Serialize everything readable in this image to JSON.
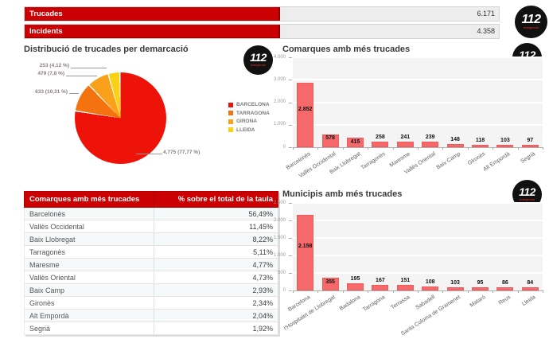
{
  "logo": {
    "text": "112",
    "subtext": "emergències"
  },
  "header": {
    "rows": [
      {
        "label": "Trucades",
        "value": "6.171"
      },
      {
        "label": "Incidents",
        "value": "4.358"
      }
    ]
  },
  "sections": {
    "pie_title": "Distribució de trucades per demarcació",
    "comarques_title": "Comarques amb més trucades",
    "municipis_title": "Municipis amb més trucades"
  },
  "chart_data": [
    {
      "type": "pie",
      "title": "Distribució de trucades per demarcació",
      "labels": [
        "BARCELONA",
        "TARRAGONA",
        "GIRONA",
        "LLEIDA"
      ],
      "values": [
        4775,
        633,
        479,
        253
      ],
      "percents": [
        77.77,
        10.31,
        7.8,
        4.12
      ],
      "display_labels": [
        "4.775 (77,77 %)",
        "633 (10,31 %)",
        "479 (7,8 %)",
        "253 (4,12 %)"
      ],
      "colors": [
        "#ee1309",
        "#f5730f",
        "#f9a11b",
        "#fbd116"
      ],
      "legend_position": "right"
    },
    {
      "type": "bar",
      "title": "Comarques amb més trucades",
      "categories": [
        "Barcelonès",
        "Vallès Occidental",
        "Baix Llobregat",
        "Tarragonès",
        "Maresme",
        "Vallès Oriental",
        "Baix Camp",
        "Gironès",
        "Alt Empordà",
        "Segrià"
      ],
      "values": [
        2852,
        578,
        415,
        258,
        241,
        239,
        148,
        118,
        103,
        97
      ],
      "value_labels": [
        "2.852",
        "578",
        "415",
        "258",
        "241",
        "239",
        "148",
        "118",
        "103",
        "97"
      ],
      "ylim": [
        0,
        4000
      ],
      "yticks": [
        "0",
        "1.000",
        "2.000",
        "3.000",
        "4.000"
      ],
      "bar_color": "#f5696b",
      "grid": true
    },
    {
      "type": "bar",
      "title": "Municipis amb més trucades",
      "categories": [
        "Barcelona",
        "l'Hospitalet de Llobregat",
        "Badalona",
        "Tarragona",
        "Terrassa",
        "Sabadell",
        "Santa Coloma de Gramenet",
        "Mataró",
        "Reus",
        "Lleida"
      ],
      "values": [
        2158,
        355,
        195,
        167,
        151,
        108,
        103,
        95,
        86,
        84
      ],
      "value_labels": [
        "2.158",
        "355",
        "195",
        "167",
        "151",
        "108",
        "103",
        "95",
        "86",
        "84"
      ],
      "ylim": [
        0,
        2500
      ],
      "yticks": [
        "0",
        "500",
        "1.000",
        "1.500",
        "2.000",
        "2.500"
      ],
      "bar_color": "#f5696b",
      "grid": true
    },
    {
      "type": "table",
      "columns": [
        "Comarques amb més trucades",
        "% sobre el total de la taula"
      ],
      "rows": [
        [
          "Barcelonès",
          "56,49%"
        ],
        [
          "Vallès Occidental",
          "11,45%"
        ],
        [
          "Baix Llobregat",
          "8,22%"
        ],
        [
          "Tarragonès",
          "5,11%"
        ],
        [
          "Maresme",
          "4,77%"
        ],
        [
          "Vallès Oriental",
          "4,73%"
        ],
        [
          "Baix Camp",
          "2,93%"
        ],
        [
          "Gironès",
          "2,34%"
        ],
        [
          "Alt Empordà",
          "2,04%"
        ],
        [
          "Segrià",
          "1,92%"
        ]
      ]
    }
  ]
}
